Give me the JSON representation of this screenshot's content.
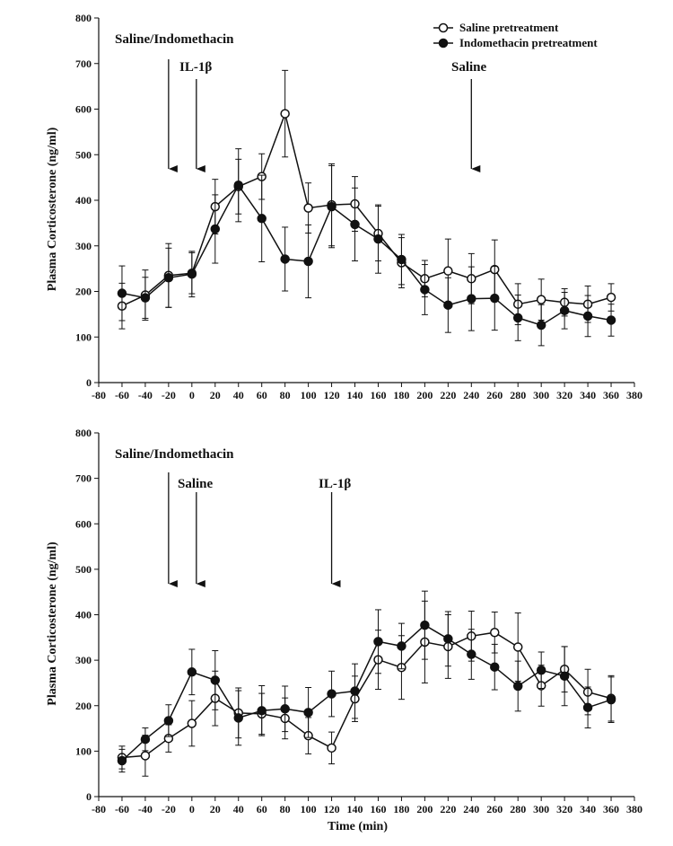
{
  "chart_data": [
    {
      "type": "line",
      "panel": "top",
      "ylabel": "Plasma Corticosterone (ng/ml)",
      "xlabel": "",
      "xlim": [
        -80,
        380
      ],
      "ylim": [
        0,
        800
      ],
      "x_ticks": [
        -80,
        -60,
        -40,
        -20,
        0,
        20,
        40,
        60,
        80,
        100,
        120,
        140,
        160,
        180,
        200,
        220,
        240,
        260,
        280,
        300,
        320,
        340,
        360,
        380
      ],
      "y_ticks": [
        0,
        100,
        200,
        300,
        400,
        500,
        600,
        700,
        800
      ],
      "legend_position": "top-right",
      "series": [
        {
          "name": "Saline pretreatment",
          "marker": "open-circle",
          "x": [
            -60,
            -40,
            -20,
            0,
            20,
            40,
            60,
            80,
            100,
            120,
            140,
            160,
            180,
            200,
            220,
            240,
            260,
            280,
            300,
            320,
            340,
            360
          ],
          "y": [
            168,
            192,
            235,
            240,
            386,
            430,
            452,
            590,
            383,
            390,
            392,
            327,
            263,
            228,
            245,
            228,
            248,
            172,
            182,
            176,
            172,
            187
          ],
          "err": [
            50,
            55,
            70,
            45,
            60,
            60,
            50,
            95,
            55,
            90,
            60,
            60,
            55,
            40,
            70,
            55,
            65,
            45,
            45,
            30,
            40,
            30
          ]
        },
        {
          "name": "Indomethacin pretreatment",
          "marker": "filled-circle",
          "x": [
            -60,
            -40,
            -20,
            0,
            20,
            40,
            60,
            80,
            100,
            120,
            140,
            160,
            180,
            200,
            220,
            240,
            260,
            280,
            300,
            320,
            340,
            360
          ],
          "y": [
            196,
            186,
            230,
            238,
            337,
            433,
            360,
            271,
            266,
            386,
            347,
            315,
            270,
            204,
            170,
            184,
            185,
            142,
            126,
            158,
            146,
            137
          ],
          "err": [
            60,
            45,
            65,
            50,
            75,
            80,
            95,
            70,
            80,
            90,
            80,
            75,
            55,
            55,
            60,
            70,
            70,
            50,
            45,
            40,
            45,
            35
          ]
        }
      ],
      "annotations": [
        {
          "text": "Saline/Indomethacin",
          "arrow_x": -20
        },
        {
          "text": "IL-1β",
          "arrow_x": 0
        },
        {
          "text": "Saline",
          "arrow_x": 240
        }
      ]
    },
    {
      "type": "line",
      "panel": "bottom",
      "ylabel": "Plasma Corticosterone (ng/ml)",
      "xlabel": "Time (min)",
      "xlim": [
        -80,
        380
      ],
      "ylim": [
        0,
        800
      ],
      "x_ticks": [
        -80,
        -60,
        -40,
        -20,
        0,
        20,
        40,
        60,
        80,
        100,
        120,
        140,
        160,
        180,
        200,
        220,
        240,
        260,
        280,
        300,
        320,
        340,
        360,
        380
      ],
      "y_ticks": [
        0,
        100,
        200,
        300,
        400,
        500,
        600,
        700,
        800
      ],
      "series": [
        {
          "name": "Saline pretreatment",
          "marker": "open-circle",
          "x": [
            -60,
            -40,
            -20,
            0,
            20,
            40,
            60,
            80,
            100,
            120,
            140,
            160,
            180,
            200,
            220,
            240,
            260,
            280,
            300,
            320,
            340,
            360
          ],
          "y": [
            86,
            90,
            128,
            161,
            216,
            184,
            182,
            172,
            134,
            107,
            215,
            301,
            284,
            340,
            330,
            353,
            361,
            329,
            244,
            280,
            230,
            216
          ],
          "err": [
            25,
            45,
            30,
            50,
            60,
            55,
            45,
            45,
            40,
            35,
            50,
            65,
            70,
            90,
            70,
            55,
            45,
            75,
            45,
            50,
            50,
            50
          ]
        },
        {
          "name": "Indomethacin pretreatment",
          "marker": "filled-circle",
          "x": [
            -60,
            -40,
            -20,
            0,
            20,
            40,
            60,
            80,
            100,
            120,
            140,
            160,
            180,
            200,
            220,
            240,
            260,
            280,
            300,
            320,
            340,
            360
          ],
          "y": [
            79,
            126,
            167,
            274,
            256,
            173,
            189,
            193,
            185,
            226,
            232,
            341,
            331,
            377,
            347,
            313,
            285,
            243,
            278,
            265,
            196,
            213
          ],
          "err": [
            25,
            25,
            35,
            50,
            65,
            60,
            55,
            50,
            55,
            50,
            60,
            70,
            50,
            75,
            60,
            55,
            50,
            55,
            40,
            65,
            45,
            50
          ]
        }
      ],
      "annotations": [
        {
          "text": "Saline/Indomethacin",
          "arrow_x": -20
        },
        {
          "text": "Saline",
          "arrow_x": 0
        },
        {
          "text": "IL-1β",
          "arrow_x": 120
        }
      ]
    }
  ]
}
